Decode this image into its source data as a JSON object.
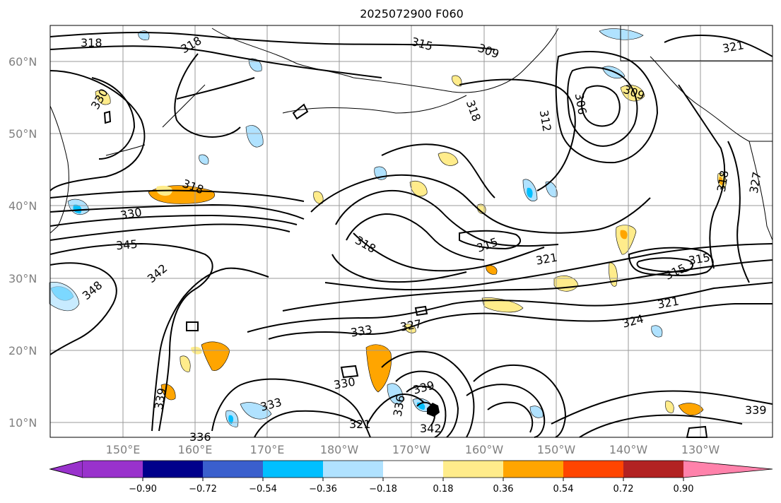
{
  "title": "2025072900 F060",
  "lat_labels": [
    "10°N",
    "20°N",
    "30°N",
    "40°N",
    "50°N",
    "60°N"
  ],
  "lon_labels": [
    "150°E",
    "160°E",
    "170°E",
    "180°W",
    "170°W",
    "160°W",
    "150°W",
    "140°W",
    "130°W"
  ],
  "contour_labels": [
    "318",
    "318",
    "330",
    "315",
    "309",
    "318",
    "312",
    "306",
    "309",
    "321",
    "318",
    "327",
    "330",
    "345",
    "342",
    "348",
    "318",
    "315",
    "321",
    "318",
    "315",
    "315",
    "321",
    "324",
    "333",
    "327",
    "330",
    "339",
    "336",
    "339",
    "342",
    "333",
    "321",
    "336",
    "339"
  ],
  "colorbar": {
    "ticks": [
      "−0.90",
      "−0.72",
      "−0.54",
      "−0.36",
      "−0.18",
      "0.18",
      "0.36",
      "0.54",
      "0.72",
      "0.90"
    ],
    "colors": [
      "#9932cc",
      "#00008b",
      "#3a5fcd",
      "#00bfff",
      "#b0e2ff",
      "#ffffff",
      "#ffec8b",
      "#ffa500",
      "#ff4500",
      "#b22222",
      "#ff82ab"
    ]
  }
}
